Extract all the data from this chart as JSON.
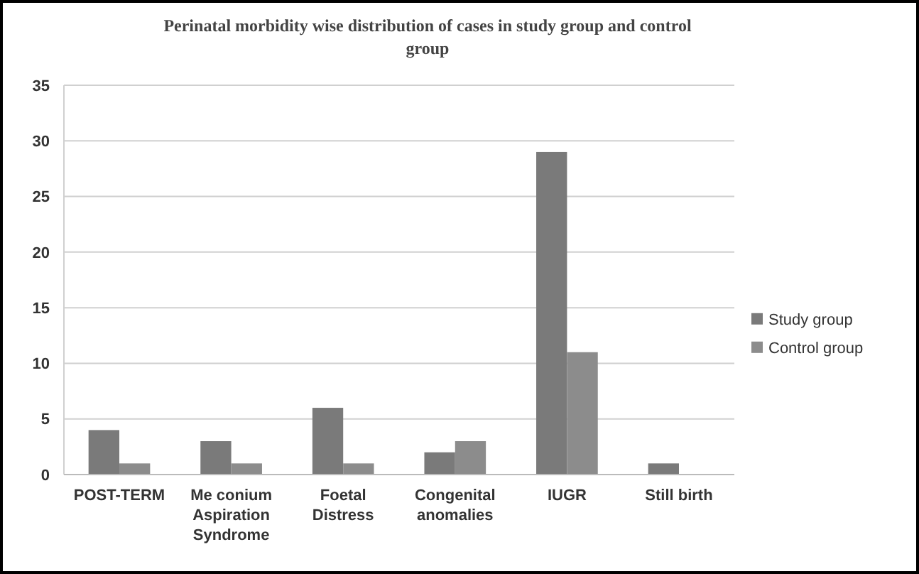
{
  "chart_data": {
    "type": "bar",
    "title": "Perinatal morbidity  wise distribution of cases in study group and control group",
    "categories": [
      "POST-TERM",
      "Me conium Aspiration Syndrome",
      "Foetal Distress",
      "Congenital anomalies",
      "IUGR",
      "Still birth"
    ],
    "series": [
      {
        "name": "Study group",
        "color": "#7a7a7a",
        "values": [
          4,
          3,
          6,
          2,
          29,
          1
        ]
      },
      {
        "name": "Control group",
        "color": "#8c8c8c",
        "values": [
          1,
          1,
          1,
          3,
          11,
          0
        ]
      }
    ],
    "ylim": [
      0,
      35
    ],
    "yticks": [
      0,
      5,
      10,
      15,
      20,
      25,
      30,
      35
    ],
    "grid": "y",
    "legend": "right"
  }
}
